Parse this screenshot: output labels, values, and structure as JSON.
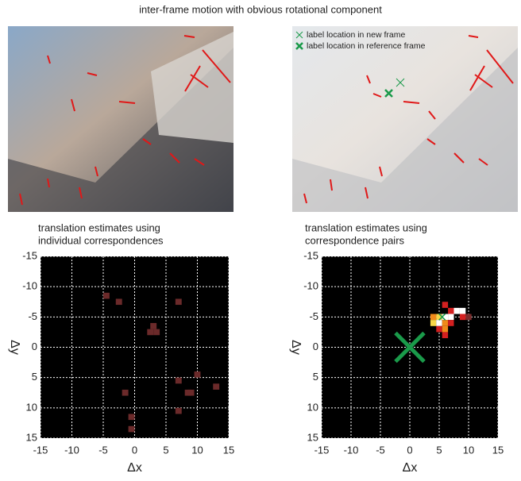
{
  "title": "inter-frame motion with obvious rotational component",
  "photos": {
    "legend": [
      "label location in new frame",
      "label location in reference frame"
    ]
  },
  "chart_data": [
    {
      "type": "heatmap",
      "title": [
        "translation estimates using",
        "individual correspondences"
      ],
      "xlabel": "Δx",
      "ylabel": "Δy",
      "xlim": [
        -15,
        15
      ],
      "ylim": [
        15,
        -15
      ],
      "xticks": [
        -15,
        -10,
        -5,
        0,
        5,
        10,
        15
      ],
      "yticks": [
        -15,
        -10,
        -5,
        0,
        5,
        10,
        15
      ],
      "grid": true,
      "x": [
        -4.5,
        -2.5,
        7,
        3,
        2.5,
        3.5,
        7,
        10,
        8.5,
        9,
        13,
        -1.5,
        7,
        -0.5,
        -0.5
      ],
      "y": [
        -8.5,
        -7.5,
        -7.5,
        -3.5,
        -2.5,
        -2.5,
        5.5,
        4.5,
        7.5,
        7.5,
        6.5,
        7.5,
        10.5,
        11.5,
        13.5
      ],
      "colors": [
        "#6b2a2a",
        "#6b2a2a",
        "#6b2a2a",
        "#6b2a2a",
        "#6b2a2a",
        "#6b2a2a",
        "#6b2a2a",
        "#6b2a2a",
        "#6b2a2a",
        "#6b2a2a",
        "#6b2a2a",
        "#6b2a2a",
        "#6b2a2a",
        "#6b2a2a",
        "#6b2a2a"
      ]
    },
    {
      "type": "heatmap",
      "title": [
        "translation estimates using",
        "correspondence pairs"
      ],
      "xlabel": "Δx",
      "ylabel": "Δy",
      "xlim": [
        -15,
        15
      ],
      "ylim": [
        15,
        -15
      ],
      "xticks": [
        -15,
        -10,
        -5,
        0,
        5,
        10,
        15
      ],
      "yticks": [
        -15,
        -10,
        -5,
        0,
        5,
        10,
        15
      ],
      "grid": true,
      "x": [
        6,
        7,
        8,
        9,
        10,
        4,
        5,
        6,
        7,
        4,
        5,
        6,
        5,
        6,
        6,
        7,
        9
      ],
      "y": [
        -7,
        -6,
        -6,
        -6,
        -5,
        -5,
        -5,
        -5,
        -5,
        -4,
        -4,
        -4,
        -3,
        -3,
        -2,
        -4,
        -5
      ],
      "colors": [
        "#d42020",
        "#d42020",
        "#ffffff",
        "#ffffff",
        "#7a2b2b",
        "#f08a1a",
        "#f7d748",
        "#ffffff",
        "#ffffff",
        "#f7d748",
        "#ffffff",
        "#f08a1a",
        "#d42020",
        "#f08a1a",
        "#d42020",
        "#d42020",
        "#d42020"
      ],
      "label_new": [
        5.5,
        -5
      ],
      "label_ref": [
        0,
        0
      ]
    }
  ]
}
